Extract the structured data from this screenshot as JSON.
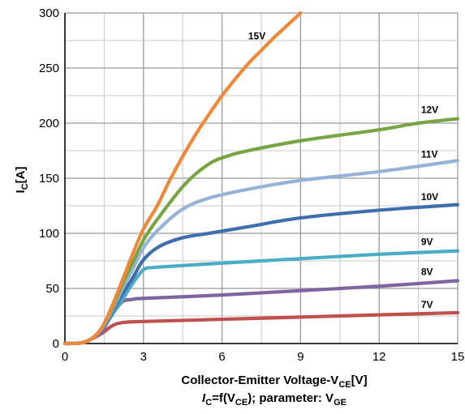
{
  "chart_data": {
    "type": "line",
    "x_axis": {
      "min": 0,
      "max": 15,
      "ticks": [
        0,
        3,
        6,
        9,
        12,
        15
      ],
      "tick_labels": [
        "0",
        "3",
        "6",
        "9",
        "12",
        "15"
      ],
      "minor_step": 1.5,
      "label_prefix": "Collector-Emitter Voltage-V",
      "label_sub": "CE",
      "label_suffix": "[V]"
    },
    "y_axis": {
      "min": 0,
      "max": 300,
      "ticks": [
        0,
        50,
        100,
        150,
        200,
        250,
        300
      ],
      "tick_labels": [
        "0",
        "50",
        "100",
        "150",
        "200",
        "250",
        "300"
      ],
      "minor_step": 25,
      "label_main": "I",
      "label_sub": "C",
      "label_suffix": "[A]"
    },
    "formula": {
      "main": "I",
      "sub1": "C",
      "mid": "=f(V",
      "sub2": "CE",
      "tail": "); parameter: V",
      "sub3": "GE"
    },
    "grid": true,
    "series": [
      {
        "name": "7V",
        "color": "#c0504d",
        "points": [
          [
            0,
            0
          ],
          [
            0.6,
            0.5
          ],
          [
            1.0,
            4
          ],
          [
            1.4,
            9
          ],
          [
            1.8,
            16
          ],
          [
            2.2,
            19
          ],
          [
            3,
            20
          ],
          [
            6,
            22
          ],
          [
            9,
            24
          ],
          [
            12,
            26
          ],
          [
            15,
            28
          ]
        ]
      },
      {
        "name": "8V",
        "color": "#8064a2",
        "points": [
          [
            0,
            0
          ],
          [
            0.6,
            0.5
          ],
          [
            1.0,
            4
          ],
          [
            1.4,
            11
          ],
          [
            1.8,
            26
          ],
          [
            2.2,
            38
          ],
          [
            2.6,
            40
          ],
          [
            3,
            41
          ],
          [
            6,
            44
          ],
          [
            9,
            48
          ],
          [
            12,
            52
          ],
          [
            15,
            57
          ]
        ]
      },
      {
        "name": "9V",
        "color": "#4bacc6",
        "points": [
          [
            0,
            0
          ],
          [
            0.6,
            0.5
          ],
          [
            1.0,
            4
          ],
          [
            1.4,
            12
          ],
          [
            1.8,
            26
          ],
          [
            2.2,
            40
          ],
          [
            2.6,
            55
          ],
          [
            3.0,
            67
          ],
          [
            3.4,
            69
          ],
          [
            4,
            70
          ],
          [
            6,
            73
          ],
          [
            9,
            77
          ],
          [
            12,
            81
          ],
          [
            15,
            84
          ]
        ]
      },
      {
        "name": "10V",
        "color": "#3e6eae",
        "points": [
          [
            0,
            0
          ],
          [
            0.6,
            0.5
          ],
          [
            1.0,
            4
          ],
          [
            1.4,
            12
          ],
          [
            1.8,
            28
          ],
          [
            2.2,
            45
          ],
          [
            2.6,
            60
          ],
          [
            3.0,
            76
          ],
          [
            3.6,
            88
          ],
          [
            4.5,
            96
          ],
          [
            5.5,
            100
          ],
          [
            7,
            106
          ],
          [
            9,
            114
          ],
          [
            12,
            121
          ],
          [
            15,
            126
          ]
        ]
      },
      {
        "name": "11V",
        "color": "#95b3d7",
        "points": [
          [
            0,
            0
          ],
          [
            0.6,
            0.5
          ],
          [
            1.0,
            4
          ],
          [
            1.4,
            13
          ],
          [
            1.8,
            30
          ],
          [
            2.2,
            50
          ],
          [
            2.6,
            68
          ],
          [
            3.0,
            87
          ],
          [
            3.6,
            104
          ],
          [
            4.5,
            122
          ],
          [
            5.5,
            132
          ],
          [
            7,
            140
          ],
          [
            9,
            148
          ],
          [
            12,
            156
          ],
          [
            15,
            166
          ]
        ]
      },
      {
        "name": "12V",
        "color": "#77a543",
        "points": [
          [
            0,
            0
          ],
          [
            0.6,
            0.5
          ],
          [
            1.0,
            4
          ],
          [
            1.4,
            14
          ],
          [
            1.8,
            32
          ],
          [
            2.2,
            54
          ],
          [
            2.6,
            74
          ],
          [
            3.0,
            94
          ],
          [
            3.6,
            115
          ],
          [
            4.6,
            145
          ],
          [
            5.5,
            163
          ],
          [
            6.2,
            170
          ],
          [
            7,
            175
          ],
          [
            9,
            184
          ],
          [
            12,
            194
          ],
          [
            13.5,
            200
          ],
          [
            15,
            204
          ]
        ]
      },
      {
        "name": "15V",
        "color": "#f0883a",
        "points": [
          [
            0,
            0
          ],
          [
            0.6,
            0.5
          ],
          [
            1.0,
            4
          ],
          [
            1.4,
            14
          ],
          [
            1.8,
            34
          ],
          [
            2.2,
            58
          ],
          [
            2.6,
            82
          ],
          [
            3.0,
            104
          ],
          [
            3.5,
            124
          ],
          [
            4.0,
            148
          ],
          [
            4.5,
            170
          ],
          [
            5.0,
            190
          ],
          [
            5.5,
            208
          ],
          [
            6.0,
            225
          ],
          [
            6.5,
            240
          ],
          [
            7.0,
            254
          ],
          [
            7.5,
            266
          ],
          [
            8.0,
            278
          ],
          [
            8.5,
            289
          ],
          [
            9.0,
            300
          ]
        ]
      }
    ]
  }
}
